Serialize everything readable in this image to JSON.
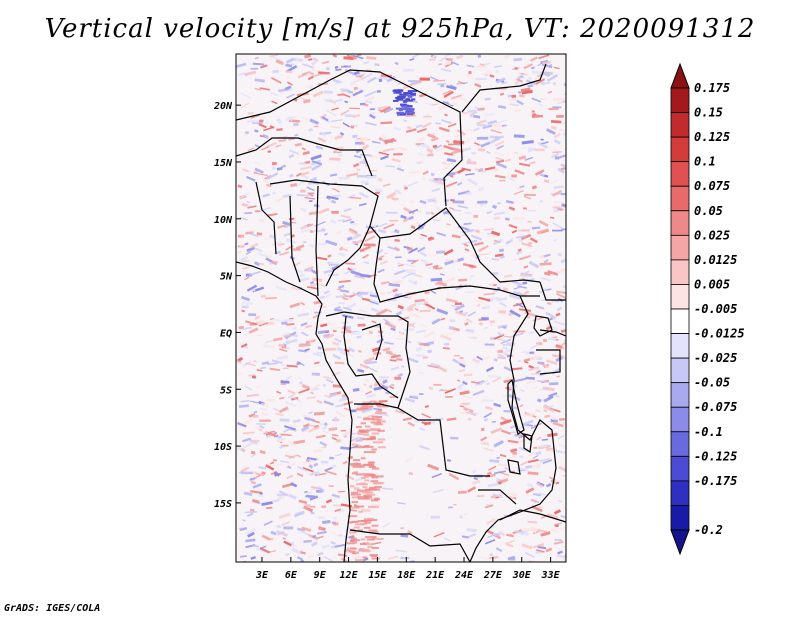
{
  "title": "Vertical velocity [m/s] at 925hPa, VT: 2020091312",
  "credit": "GrADS: IGES/COLA",
  "map": {
    "lon_labels": [
      "3E",
      "6E",
      "9E",
      "12E",
      "15E",
      "18E",
      "21E",
      "24E",
      "27E",
      "30E",
      "33E"
    ],
    "lat_labels": [
      "20N",
      "15N",
      "10N",
      "5N",
      "EQ",
      "5S",
      "10S",
      "15S"
    ],
    "lat_values": [
      20,
      15,
      10,
      5,
      0,
      -5,
      -10,
      -15
    ],
    "lon_values": [
      3,
      6,
      9,
      12,
      15,
      18,
      21,
      24,
      27,
      30,
      33
    ]
  },
  "colorbar": {
    "labels": [
      "0.175",
      "0.15",
      "0.125",
      "0.1",
      "0.075",
      "0.05",
      "0.025",
      "0.0125",
      "0.005",
      "-0.005",
      "-0.0125",
      "-0.025",
      "-0.05",
      "-0.075",
      "-0.1",
      "-0.125",
      "-0.175",
      "-0.2"
    ],
    "colors": [
      "#a41a1c",
      "#c22b2b",
      "#d43c3c",
      "#e05252",
      "#e86b6b",
      "#ef8888",
      "#f4a6a6",
      "#f9c6c6",
      "#fde4e4",
      "#ffffff",
      "#e3e3fb",
      "#c8c8f6",
      "#a9a9f0",
      "#8b8be9",
      "#6a6adf",
      "#4b4bd3",
      "#2f2fc2",
      "#1a1aa8"
    ],
    "top_arrow_color": "#8b1212",
    "bottom_arrow_color": "#14148f"
  }
}
